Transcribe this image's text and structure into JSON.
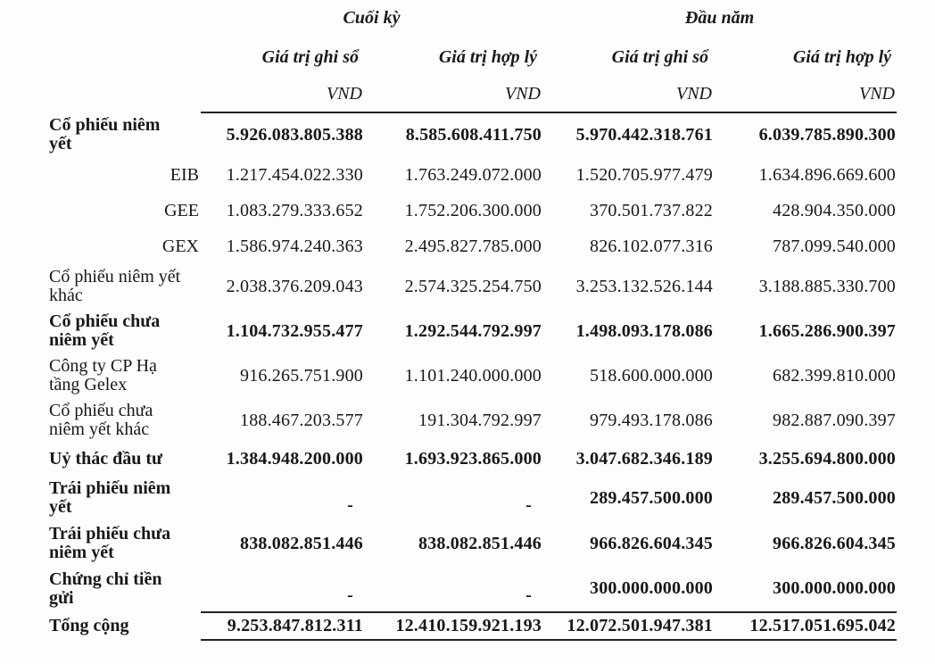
{
  "table": {
    "groups": [
      {
        "label": "Cuối kỳ"
      },
      {
        "label": "Đầu năm"
      }
    ],
    "sub_headers": [
      "Giá trị ghi sổ",
      "Giá trị hợp lý",
      "Giá trị ghi sổ",
      "Giá trị hợp lý"
    ],
    "units": [
      "VND",
      "VND",
      "VND",
      "VND"
    ],
    "rows": [
      {
        "label": "Cổ phiếu niêm\nyết",
        "values": [
          "5.926.083.805.388",
          "8.585.608.411.750",
          "5.970.442.318.761",
          "6.039.785.890.300"
        ]
      },
      {
        "label": "EIB",
        "values": [
          "1.217.454.022.330",
          "1.763.249.072.000",
          "1.520.705.977.479",
          "1.634.896.669.600"
        ]
      },
      {
        "label": "GEE",
        "values": [
          "1.083.279.333.652",
          "1.752.206.300.000",
          "370.501.737.822",
          "428.904.350.000"
        ]
      },
      {
        "label": "GEX",
        "values": [
          "1.586.974.240.363",
          "2.495.827.785.000",
          "826.102.077.316",
          "787.099.540.000"
        ]
      },
      {
        "label": "Cổ phiếu niêm yết\nkhác",
        "values": [
          "2.038.376.209.043",
          "2.574.325.254.750",
          "3.253.132.526.144",
          "3.188.885.330.700"
        ]
      },
      {
        "label": "Cổ phiếu chưa\nniêm yết",
        "values": [
          "1.104.732.955.477",
          "1.292.544.792.997",
          "1.498.093.178.086",
          "1.665.286.900.397"
        ]
      },
      {
        "label": "Công ty CP Hạ\ntầng Gelex",
        "values": [
          "916.265.751.900",
          "1.101.240.000.000",
          "518.600.000.000",
          "682.399.810.000"
        ]
      },
      {
        "label": "Cổ phiếu chưa\nniêm yết khác",
        "values": [
          "188.467.203.577",
          "191.304.792.997",
          "979.493.178.086",
          "982.887.090.397"
        ]
      },
      {
        "label": "Uỷ thác đầu tư",
        "values": [
          "1.384.948.200.000",
          "1.693.923.865.000",
          "3.047.682.346.189",
          "3.255.694.800.000"
        ]
      },
      {
        "label": "Trái phiếu niêm\nyết",
        "values": [
          "-",
          "-",
          "289.457.500.000",
          "289.457.500.000"
        ]
      },
      {
        "label": "Trái phiếu chưa\nniêm yết",
        "values": [
          "838.082.851.446",
          "838.082.851.446",
          "966.826.604.345",
          "966.826.604.345"
        ]
      },
      {
        "label": "Chứng chỉ tiền\ngửi",
        "values": [
          "-",
          "-",
          "300.000.000.000",
          "300.000.000.000"
        ]
      }
    ],
    "total": {
      "label": "Tổng cộng",
      "values": [
        "9.253.847.812.311",
        "12.410.159.921.193",
        "12.072.501.947.381",
        "12.517.051.695.042"
      ]
    }
  }
}
